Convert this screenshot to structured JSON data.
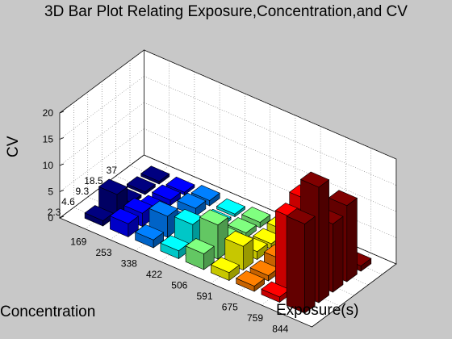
{
  "chart_data": {
    "type": "bar3d",
    "title": "3D Bar Plot Relating Exposure,Concentration,and CV",
    "xlabel": "Exposure(s)",
    "ylabel": "Concentration",
    "zlabel": "CV",
    "x_ticks": [
      "169",
      "253",
      "338",
      "422",
      "506",
      "591",
      "675",
      "759",
      "844"
    ],
    "y_ticks": [
      "2.3",
      "4.6",
      "9.3",
      "18.5",
      "37"
    ],
    "z_ticks": [
      0,
      5,
      10,
      15,
      20
    ],
    "zlim": [
      0,
      20
    ],
    "grid": true,
    "colormap": "jet",
    "values": [
      [
        1.0,
        2.5,
        1.5,
        1.5,
        3.0,
        1.5,
        1.0,
        1.0,
        17.0
      ],
      [
        4.0,
        2.5,
        4.0,
        4.5,
        6.5,
        4.5,
        1.0,
        14.0,
        22.0
      ],
      [
        0.5,
        1.0,
        0.5,
        1.0,
        1.5,
        1.5,
        2.0,
        15.5,
        13.0
      ],
      [
        0.5,
        1.0,
        1.5,
        0.5,
        1.0,
        1.0,
        1.5,
        1.5,
        14.5
      ],
      [
        0.5,
        0.5,
        1.0,
        0.5,
        1.0,
        1.5,
        1.0,
        1.5,
        1.0
      ]
    ]
  }
}
